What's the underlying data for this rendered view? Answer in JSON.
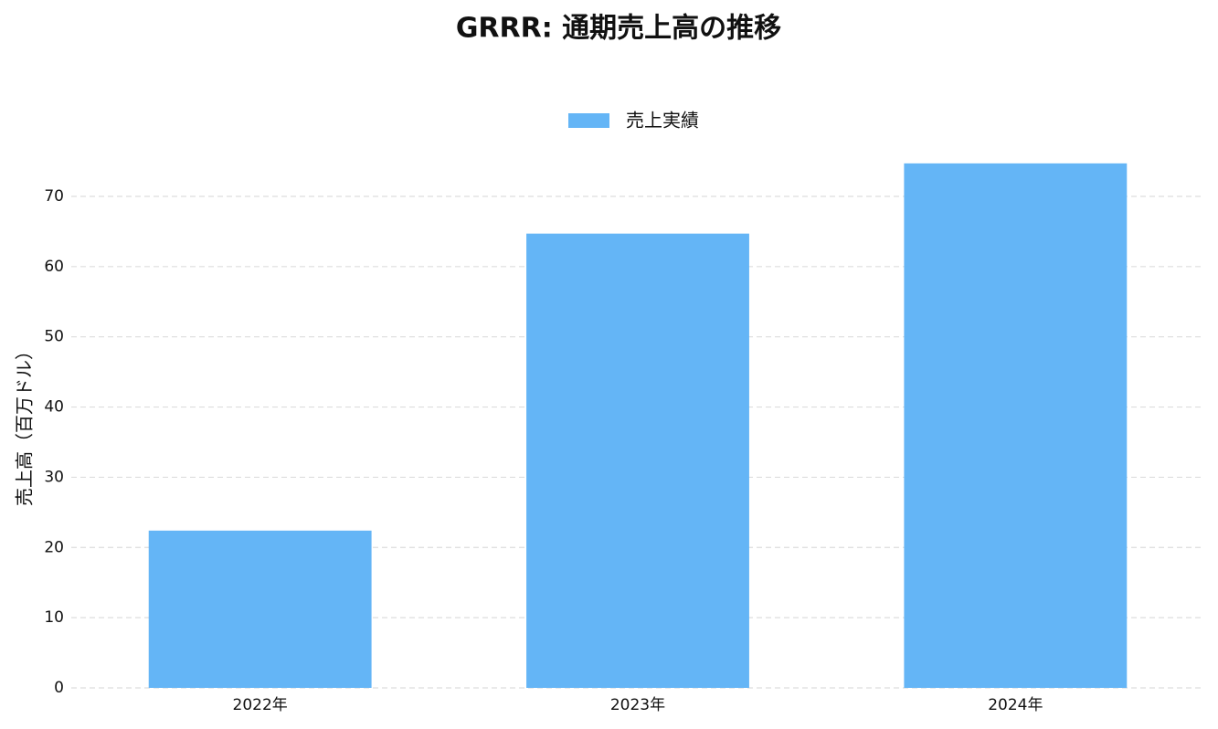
{
  "chart_data": {
    "type": "bar",
    "title": "GRRR: 通期売上高の推移",
    "y_label": "売上高（百万ドル）",
    "categories": [
      "2022年",
      "2023年",
      "2024年"
    ],
    "series": [
      {
        "name": "売上実績",
        "color": "#64b5f6",
        "values": [
          22.4,
          64.7,
          74.7
        ]
      }
    ],
    "ylim": [
      0,
      75.2
    ],
    "yticks": [
      0,
      10,
      20,
      30,
      40,
      50,
      60,
      70
    ],
    "grid": true,
    "legend": "top"
  }
}
